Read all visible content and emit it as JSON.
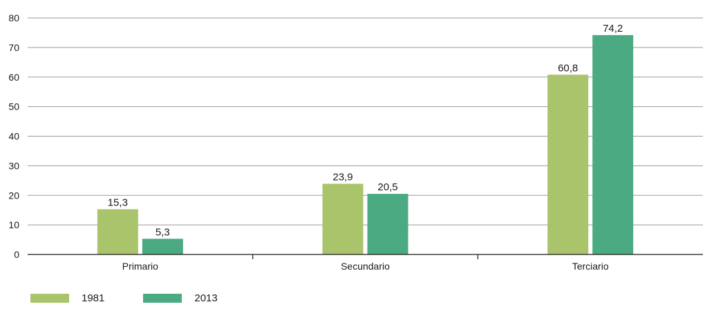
{
  "chart_data": {
    "type": "bar",
    "categories": [
      "Primario",
      "Secundario",
      "Terciario"
    ],
    "series": [
      {
        "name": "1981",
        "values": [
          15.3,
          23.9,
          60.8
        ],
        "labels": [
          "15,3",
          "23,9",
          "60,8"
        ],
        "color": "#a9c46b"
      },
      {
        "name": "2013",
        "values": [
          5.3,
          20.5,
          74.2
        ],
        "labels": [
          "5,3",
          "20,5",
          "74,2"
        ],
        "color": "#4caa82"
      }
    ],
    "ylim": [
      0,
      80
    ],
    "yticks": [
      0,
      10,
      20,
      30,
      40,
      50,
      60,
      70,
      80
    ],
    "title": "",
    "xlabel": "",
    "ylabel": "",
    "grid": true,
    "legend_position": "bottom-left"
  }
}
